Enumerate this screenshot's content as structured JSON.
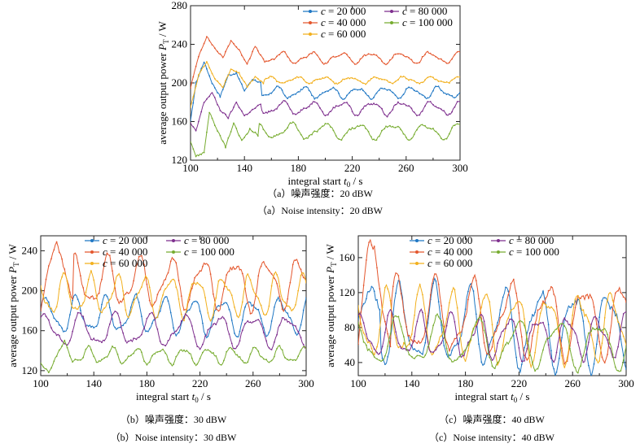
{
  "colors": {
    "c20000": "#1f77c4",
    "c40000": "#e4572e",
    "c60000": "#f2b01e",
    "c80000": "#7e2f8e",
    "c100000": "#77ac30"
  },
  "chart_data": [
    {
      "type": "line",
      "panel": "a",
      "xlabel_main": "integral start ",
      "xlabel_t": "t",
      "xlabel_sub": "0",
      "xlabel_unit": " / s",
      "ylabel_main": "average output power  ",
      "ylabel_p": "P",
      "ylabel_sub": "T",
      "ylabel_unit": " / W",
      "xlim": [
        100,
        300
      ],
      "ylim": [
        120,
        280
      ],
      "xticks": [
        "100",
        "140",
        "180",
        "220",
        "260",
        "300"
      ],
      "yticks": [
        "120",
        "160",
        "200",
        "240",
        "280"
      ],
      "caption_cn": "（a）噪声强度：20 dBW",
      "caption_en": "（a）Noise intensity：20 dBW",
      "series": [
        {
          "name": "c = 20 000",
          "color": "#1f77c4",
          "base": 190,
          "amp": 5,
          "period": 20,
          "phase": 0.3,
          "init": [
            [
              100,
              160
            ],
            [
              104,
              200
            ],
            [
              110,
              222
            ],
            [
              116,
              200
            ],
            [
              122,
              186
            ],
            [
              128,
              208
            ],
            [
              134,
              210
            ],
            [
              140,
              192
            ],
            [
              146,
              204
            ],
            [
              152,
              200
            ]
          ]
        },
        {
          "name": "c = 40 000",
          "color": "#e4572e",
          "base": 226,
          "amp": 5,
          "period": 22,
          "phase": 1.1,
          "init": [
            [
              100,
              195
            ],
            [
              106,
              228
            ],
            [
              112,
              248
            ],
            [
              118,
              236
            ],
            [
              124,
              226
            ],
            [
              130,
              244
            ],
            [
              136,
              234
            ],
            [
              142,
              220
            ],
            [
              148,
              238
            ],
            [
              154,
              224
            ]
          ]
        },
        {
          "name": "c = 60 000",
          "color": "#f2b01e",
          "base": 203,
          "amp": 3,
          "period": 20,
          "phase": 2.0,
          "init": [
            [
              100,
              175
            ],
            [
              106,
              208
            ],
            [
              112,
              222
            ],
            [
              118,
              204
            ],
            [
              124,
              196
            ],
            [
              130,
              214
            ],
            [
              136,
              210
            ],
            [
              142,
              196
            ],
            [
              148,
              206
            ],
            [
              154,
              200
            ]
          ]
        },
        {
          "name": "c = 80 000",
          "color": "#7e2f8e",
          "base": 174,
          "amp": 6,
          "period": 22,
          "phase": 0.8,
          "init": [
            [
              100,
              158
            ],
            [
              104,
              150
            ],
            [
              110,
              180
            ],
            [
              116,
              190
            ],
            [
              122,
              172
            ],
            [
              128,
              164
            ],
            [
              134,
              180
            ],
            [
              140,
              166
            ],
            [
              146,
              172
            ],
            [
              152,
              178
            ]
          ]
        },
        {
          "name": "c = 100 000",
          "color": "#77ac30",
          "base": 150,
          "amp": 7,
          "period": 25,
          "phase": 1.7,
          "init": [
            [
              100,
              140
            ],
            [
              104,
              124
            ],
            [
              110,
              128
            ],
            [
              114,
              170
            ],
            [
              120,
              150
            ],
            [
              126,
              134
            ],
            [
              132,
              158
            ],
            [
              138,
              140
            ],
            [
              144,
              152
            ],
            [
              150,
              146
            ]
          ]
        }
      ]
    },
    {
      "type": "line",
      "panel": "b",
      "xlabel_main": "integral start ",
      "xlabel_t": "t",
      "xlabel_sub": "0",
      "xlabel_unit": " / s",
      "ylabel_main": "average output power  ",
      "ylabel_p": "P",
      "ylabel_sub": "T",
      "ylabel_unit": " / W",
      "xlim": [
        100,
        300
      ],
      "ylim": [
        115,
        255
      ],
      "xticks": [
        "100",
        "140",
        "180",
        "220",
        "260",
        "300"
      ],
      "yticks": [
        "120",
        "160",
        "200",
        "240"
      ],
      "ytick_values": [
        120,
        160,
        200,
        240
      ],
      "caption_cn": "（b）噪声强度：30 dBW",
      "caption_en": "（b）Noise intensity：30 dBW",
      "series": [
        {
          "name": "c = 20 000",
          "color": "#1f77c4",
          "base": 175,
          "amp": 16,
          "period": 22,
          "phase": 0.2,
          "init": []
        },
        {
          "name": "c = 40 000",
          "color": "#e4572e",
          "base": 208,
          "amp": 22,
          "period": 24,
          "phase": 1.0,
          "init": [
            [
              100,
              180
            ],
            [
              106,
              225
            ],
            [
              112,
              250
            ],
            [
              118,
              220
            ],
            [
              124,
              190
            ]
          ]
        },
        {
          "name": "c = 60 000",
          "color": "#f2b01e",
          "base": 195,
          "amp": 18,
          "period": 20,
          "phase": 2.3,
          "init": []
        },
        {
          "name": "c = 80 000",
          "color": "#7e2f8e",
          "base": 160,
          "amp": 14,
          "period": 26,
          "phase": 0.6,
          "init": []
        },
        {
          "name": "c = 100 000",
          "color": "#77ac30",
          "base": 135,
          "amp": 7,
          "period": 18,
          "phase": 1.6,
          "init": [
            [
              100,
              128
            ],
            [
              106,
              118
            ],
            [
              112,
              135
            ],
            [
              118,
              150
            ],
            [
              124,
              128
            ]
          ]
        }
      ]
    },
    {
      "type": "line",
      "panel": "c",
      "xlabel_main": "integral start ",
      "xlabel_t": "t",
      "xlabel_sub": "0",
      "xlabel_unit": " / s",
      "ylabel_main": "average output power  ",
      "ylabel_p": "P",
      "ylabel_sub": "T",
      "ylabel_unit": " / W",
      "xlim": [
        100,
        300
      ],
      "ylim": [
        25,
        185
      ],
      "xticks": [
        "100",
        "140",
        "180",
        "220",
        "260",
        "300"
      ],
      "yticks": [
        "40",
        "80",
        "120",
        "160"
      ],
      "ytick_values": [
        40,
        80,
        120,
        160
      ],
      "caption_cn": "（c）噪声强度：40 dBW",
      "caption_en": "（c）Noise intensity：40 dBW",
      "series": [
        {
          "name": "c = 20 000",
          "color": "#1f77c4",
          "base": 80,
          "amp": 40,
          "period": 26,
          "phase": 0.4,
          "init": [
            [
              100,
              90
            ],
            [
              106,
              115
            ],
            [
              110,
              128
            ],
            [
              116,
              100
            ]
          ]
        },
        {
          "name": "c = 40 000",
          "color": "#e4572e",
          "base": 90,
          "amp": 38,
          "period": 28,
          "phase": 1.3,
          "init": [
            [
              100,
              60
            ],
            [
              104,
              130
            ],
            [
              108,
              180
            ],
            [
              112,
              170
            ],
            [
              118,
              100
            ],
            [
              124,
              60
            ]
          ]
        },
        {
          "name": "c = 60 000",
          "color": "#f2b01e",
          "base": 82,
          "amp": 34,
          "period": 24,
          "phase": 2.2,
          "init": []
        },
        {
          "name": "c = 80 000",
          "color": "#7e2f8e",
          "base": 70,
          "amp": 22,
          "period": 22,
          "phase": 0.9,
          "init": []
        },
        {
          "name": "c = 100 000",
          "color": "#77ac30",
          "base": 62,
          "amp": 24,
          "period": 30,
          "phase": 1.8,
          "init": []
        }
      ]
    }
  ]
}
